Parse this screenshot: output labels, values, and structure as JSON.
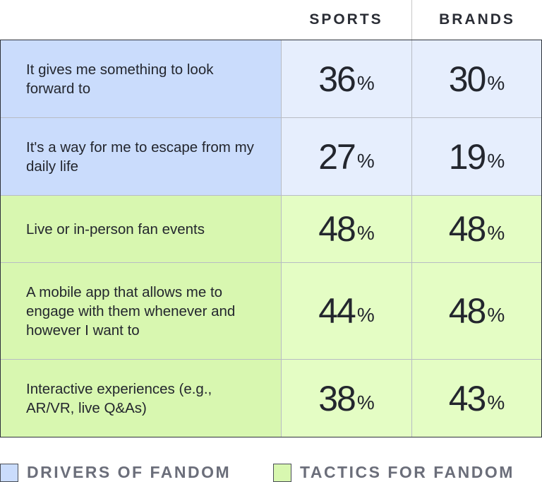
{
  "colors": {
    "drivers_label": "#cadcfc",
    "drivers_value": "#e6eefd",
    "tactics_label": "#d8f7b0",
    "tactics_value": "#e4fdc4"
  },
  "chart_data": {
    "type": "table",
    "columns": [
      "SPORTS",
      "BRANDS"
    ],
    "rows": [
      {
        "label": "It gives me something to look forward to",
        "group": "drivers",
        "values": [
          "36",
          "30"
        ]
      },
      {
        "label": "It's a way for me to escape from my daily life",
        "group": "drivers",
        "values": [
          "27",
          "19"
        ]
      },
      {
        "label": "Live or in-person fan events",
        "group": "tactics",
        "values": [
          "48",
          "48"
        ]
      },
      {
        "label": "A mobile app that allows me to engage with them whenever and however I want to",
        "group": "tactics",
        "values": [
          "44",
          "48"
        ]
      },
      {
        "label": "Interactive experiences (e.g., AR/VR, live Q&As)",
        "group": "tactics",
        "values": [
          "38",
          "43"
        ]
      }
    ],
    "unit": "%",
    "legend": [
      {
        "key": "drivers",
        "label": "DRIVERS OF FANDOM"
      },
      {
        "key": "tactics",
        "label": "TACTICS FOR FANDOM"
      }
    ]
  }
}
